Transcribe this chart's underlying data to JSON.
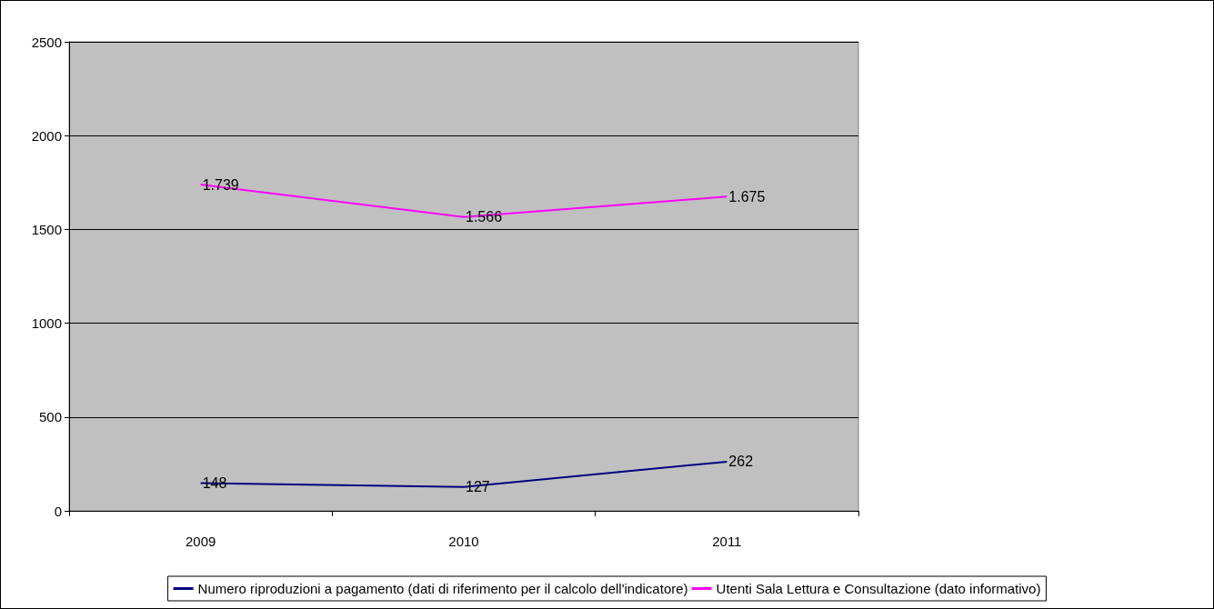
{
  "chart_data": {
    "type": "line",
    "categories": [
      "2009",
      "2010",
      "2011"
    ],
    "series": [
      {
        "name": "Numero riproduzioni a pagamento (dati di riferimento per il calcolo dell'indicatore)",
        "color": "#000080",
        "values": [
          148,
          127,
          262
        ],
        "value_labels": [
          "148",
          "127",
          "262"
        ]
      },
      {
        "name": "Utenti Sala Lettura e Consultazione (dato informativo)",
        "color": "#ff00ff",
        "values": [
          1739,
          1566,
          1675
        ],
        "value_labels": [
          "1.739",
          "1.566",
          "1.675"
        ]
      }
    ],
    "ylim": [
      0,
      2500
    ],
    "yticks": [
      0,
      500,
      1000,
      1500,
      2000,
      2500
    ],
    "grid": "y",
    "legend": "bottom",
    "marker": "none",
    "line_style": "solid"
  }
}
